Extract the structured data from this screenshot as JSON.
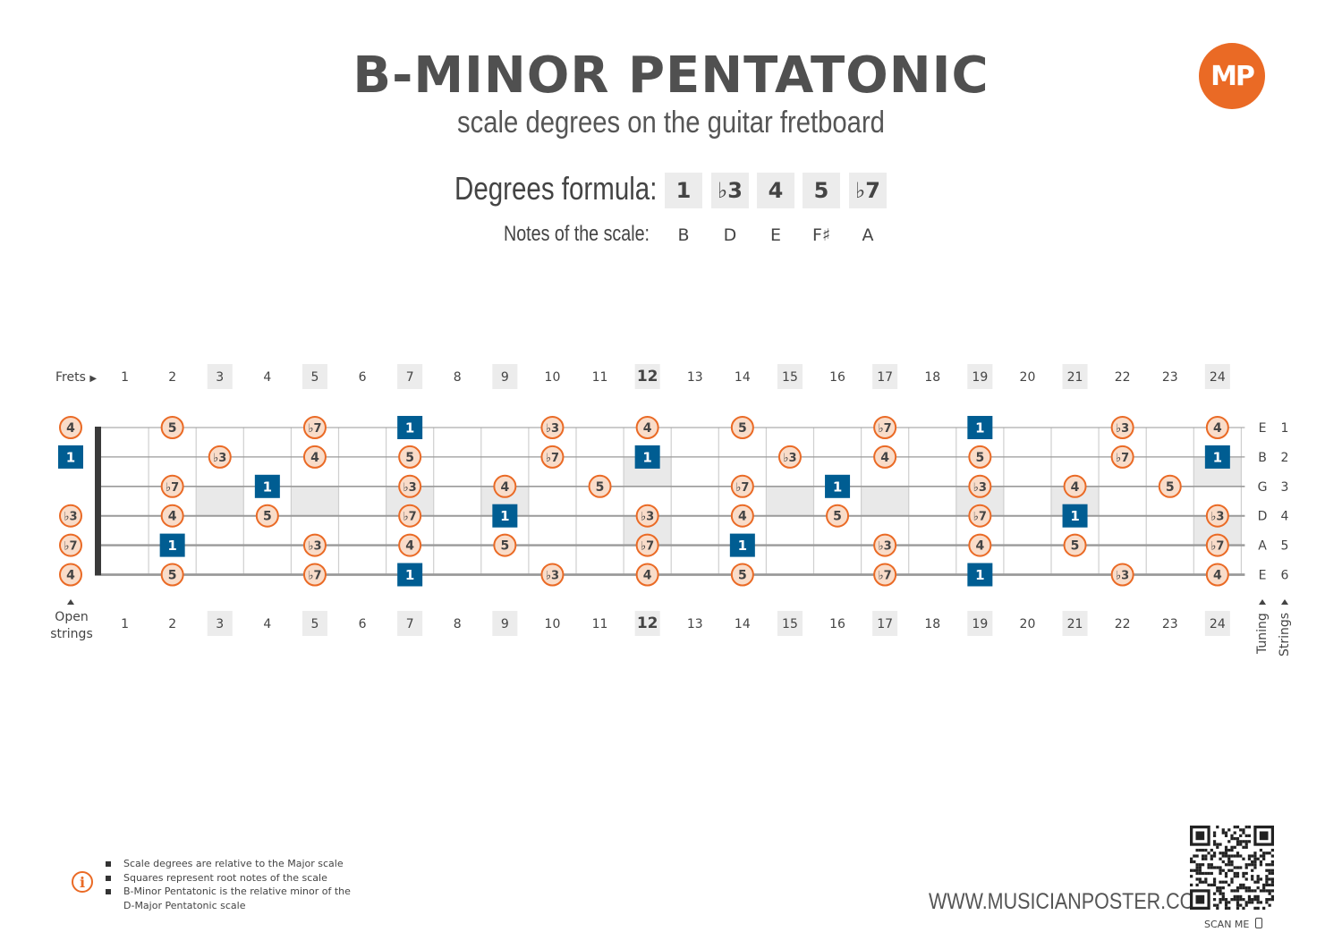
{
  "header": {
    "title": "B-MINOR PENTATONIC",
    "subtitle": "scale degrees on the guitar fretboard",
    "logo_text": "MP"
  },
  "formula": {
    "label": "Degrees formula:",
    "degrees": [
      "1",
      "♭3",
      "4",
      "5",
      "♭7"
    ],
    "notes_label": "Notes of the scale:",
    "notes": [
      "B",
      "D",
      "E",
      "F♯",
      "A"
    ]
  },
  "fretboard": {
    "frets_label": "Frets",
    "open_label_line1": "Open",
    "open_label_line2": "strings",
    "tuning_label": "Tuning",
    "strings_label": "Strings",
    "fret_numbers": [
      "1",
      "2",
      "3",
      "4",
      "5",
      "6",
      "7",
      "8",
      "9",
      "10",
      "11",
      "12",
      "13",
      "14",
      "15",
      "16",
      "17",
      "18",
      "19",
      "20",
      "21",
      "22",
      "23",
      "24"
    ],
    "highlighted_frets": [
      3,
      5,
      7,
      9,
      12,
      15,
      17,
      19,
      21,
      24
    ],
    "inlay_frets": [
      3,
      5,
      7,
      9,
      15,
      17,
      19,
      21
    ],
    "double_inlay_frets": [
      12,
      24
    ],
    "tuning": [
      "E",
      "B",
      "G",
      "D",
      "A",
      "E"
    ],
    "string_numbers": [
      "1",
      "2",
      "3",
      "4",
      "5",
      "6"
    ],
    "positions": [
      {
        "string": 1,
        "fret": 0,
        "degree": "4"
      },
      {
        "string": 1,
        "fret": 2,
        "degree": "5"
      },
      {
        "string": 1,
        "fret": 5,
        "degree": "♭7"
      },
      {
        "string": 1,
        "fret": 7,
        "degree": "1",
        "root": true
      },
      {
        "string": 1,
        "fret": 10,
        "degree": "♭3"
      },
      {
        "string": 1,
        "fret": 12,
        "degree": "4"
      },
      {
        "string": 1,
        "fret": 14,
        "degree": "5"
      },
      {
        "string": 1,
        "fret": 17,
        "degree": "♭7"
      },
      {
        "string": 1,
        "fret": 19,
        "degree": "1",
        "root": true
      },
      {
        "string": 1,
        "fret": 22,
        "degree": "♭3"
      },
      {
        "string": 1,
        "fret": 24,
        "degree": "4"
      },
      {
        "string": 2,
        "fret": 0,
        "degree": "1",
        "root": true
      },
      {
        "string": 2,
        "fret": 3,
        "degree": "♭3"
      },
      {
        "string": 2,
        "fret": 5,
        "degree": "4"
      },
      {
        "string": 2,
        "fret": 7,
        "degree": "5"
      },
      {
        "string": 2,
        "fret": 10,
        "degree": "♭7"
      },
      {
        "string": 2,
        "fret": 12,
        "degree": "1",
        "root": true
      },
      {
        "string": 2,
        "fret": 15,
        "degree": "♭3"
      },
      {
        "string": 2,
        "fret": 17,
        "degree": "4"
      },
      {
        "string": 2,
        "fret": 19,
        "degree": "5"
      },
      {
        "string": 2,
        "fret": 22,
        "degree": "♭7"
      },
      {
        "string": 2,
        "fret": 24,
        "degree": "1",
        "root": true
      },
      {
        "string": 3,
        "fret": 2,
        "degree": "♭7"
      },
      {
        "string": 3,
        "fret": 4,
        "degree": "1",
        "root": true
      },
      {
        "string": 3,
        "fret": 7,
        "degree": "♭3"
      },
      {
        "string": 3,
        "fret": 9,
        "degree": "4"
      },
      {
        "string": 3,
        "fret": 11,
        "degree": "5"
      },
      {
        "string": 3,
        "fret": 14,
        "degree": "♭7"
      },
      {
        "string": 3,
        "fret": 16,
        "degree": "1",
        "root": true
      },
      {
        "string": 3,
        "fret": 19,
        "degree": "♭3"
      },
      {
        "string": 3,
        "fret": 21,
        "degree": "4"
      },
      {
        "string": 3,
        "fret": 23,
        "degree": "5"
      },
      {
        "string": 4,
        "fret": 0,
        "degree": "♭3"
      },
      {
        "string": 4,
        "fret": 2,
        "degree": "4"
      },
      {
        "string": 4,
        "fret": 4,
        "degree": "5"
      },
      {
        "string": 4,
        "fret": 7,
        "degree": "♭7"
      },
      {
        "string": 4,
        "fret": 9,
        "degree": "1",
        "root": true
      },
      {
        "string": 4,
        "fret": 12,
        "degree": "♭3"
      },
      {
        "string": 4,
        "fret": 14,
        "degree": "4"
      },
      {
        "string": 4,
        "fret": 16,
        "degree": "5"
      },
      {
        "string": 4,
        "fret": 19,
        "degree": "♭7"
      },
      {
        "string": 4,
        "fret": 21,
        "degree": "1",
        "root": true
      },
      {
        "string": 4,
        "fret": 24,
        "degree": "♭3"
      },
      {
        "string": 5,
        "fret": 0,
        "degree": "♭7"
      },
      {
        "string": 5,
        "fret": 2,
        "degree": "1",
        "root": true
      },
      {
        "string": 5,
        "fret": 5,
        "degree": "♭3"
      },
      {
        "string": 5,
        "fret": 7,
        "degree": "4"
      },
      {
        "string": 5,
        "fret": 9,
        "degree": "5"
      },
      {
        "string": 5,
        "fret": 12,
        "degree": "♭7"
      },
      {
        "string": 5,
        "fret": 14,
        "degree": "1",
        "root": true
      },
      {
        "string": 5,
        "fret": 17,
        "degree": "♭3"
      },
      {
        "string": 5,
        "fret": 19,
        "degree": "4"
      },
      {
        "string": 5,
        "fret": 21,
        "degree": "5"
      },
      {
        "string": 5,
        "fret": 24,
        "degree": "♭7"
      },
      {
        "string": 6,
        "fret": 0,
        "degree": "4"
      },
      {
        "string": 6,
        "fret": 2,
        "degree": "5"
      },
      {
        "string": 6,
        "fret": 5,
        "degree": "♭7"
      },
      {
        "string": 6,
        "fret": 7,
        "degree": "1",
        "root": true
      },
      {
        "string": 6,
        "fret": 10,
        "degree": "♭3"
      },
      {
        "string": 6,
        "fret": 12,
        "degree": "4"
      },
      {
        "string": 6,
        "fret": 14,
        "degree": "5"
      },
      {
        "string": 6,
        "fret": 17,
        "degree": "♭7"
      },
      {
        "string": 6,
        "fret": 19,
        "degree": "1",
        "root": true
      },
      {
        "string": 6,
        "fret": 22,
        "degree": "♭3"
      },
      {
        "string": 6,
        "fret": 24,
        "degree": "4"
      }
    ]
  },
  "colors": {
    "orange": "#ea6a25",
    "orange_fill": "#f9dcc9",
    "root_blue": "#005d92",
    "highlight_gray": "#ececec",
    "inlay_gray": "#e9e9e9",
    "fret_line": "#cfcfcf",
    "string_line": "#9a9a9a",
    "nut": "#3a3a3a"
  },
  "footer": {
    "notes": [
      "Scale degrees are relative to the Major scale",
      "Squares represent root notes of the scale",
      "B-Minor Pentatonic is the relative minor of the",
      "D-Major Pentatonic scale"
    ],
    "website": "WWW.MUSICIANPOSTER.COM",
    "scan_label": "SCAN ME"
  }
}
